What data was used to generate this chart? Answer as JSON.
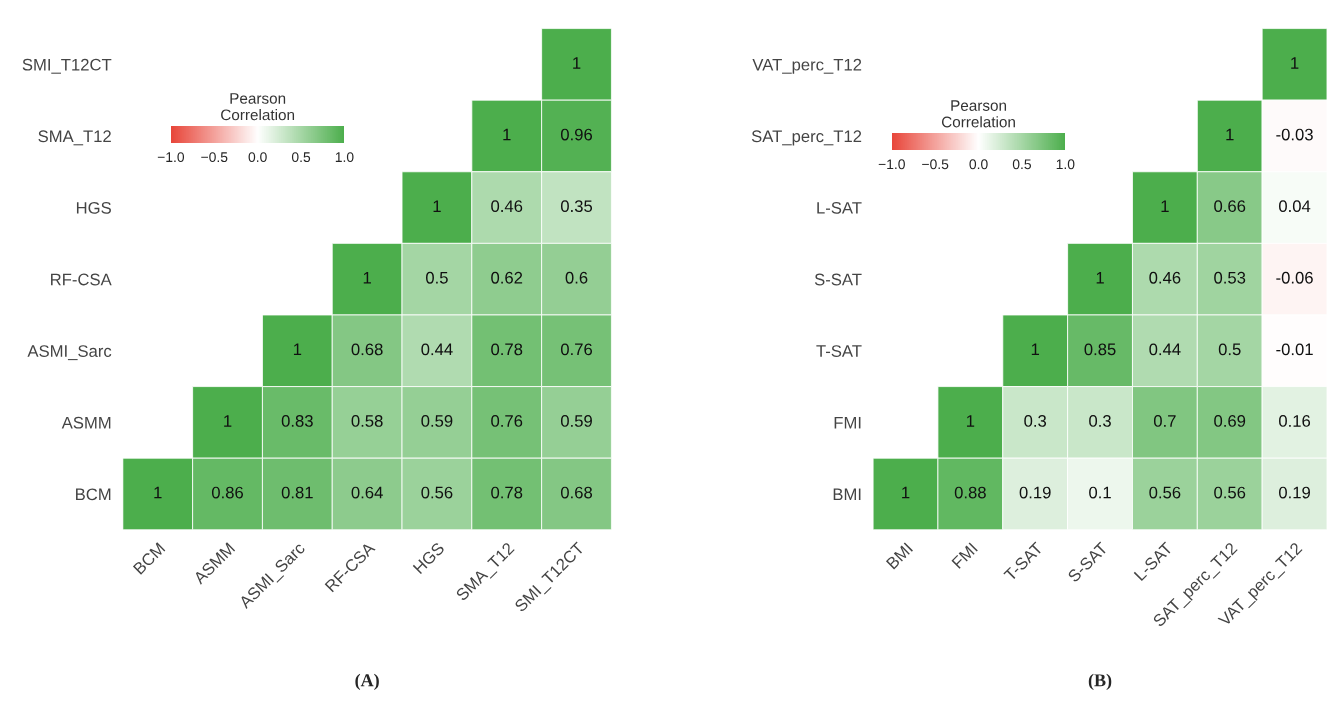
{
  "chart_data": [
    {
      "type": "heatmap",
      "categories": [
        "BCM",
        "ASMM",
        "ASMI_Sarc",
        "RF-CSA",
        "HGS",
        "SMA_T12",
        "SMI_T12CT"
      ],
      "y_categories": [
        "SMI_T12CT",
        "SMA_T12",
        "HGS",
        "RF-CSA",
        "ASMI_Sarc",
        "ASMM",
        "BCM"
      ],
      "cells": [
        [
          null,
          null,
          null,
          null,
          null,
          null,
          1
        ],
        [
          null,
          null,
          null,
          null,
          null,
          1,
          0.96
        ],
        [
          null,
          null,
          null,
          null,
          1,
          0.46,
          0.35
        ],
        [
          null,
          null,
          null,
          1,
          0.5,
          0.62,
          0.6
        ],
        [
          null,
          null,
          1,
          0.68,
          0.44,
          0.78,
          0.76
        ],
        [
          null,
          1,
          0.83,
          0.58,
          0.59,
          0.76,
          0.59
        ],
        [
          1,
          0.86,
          0.81,
          0.64,
          0.56,
          0.78,
          0.68
        ]
      ],
      "clabel": "Pearson\nCorrelation",
      "clim": [
        -1,
        1
      ],
      "cticks": [
        {
          "value": -1,
          "label": "−1.0"
        },
        {
          "value": -0.5,
          "label": "−0.5"
        },
        {
          "value": 0,
          "label": "0.0"
        },
        {
          "value": 0.5,
          "label": "0.5"
        },
        {
          "value": 1,
          "label": "1.0"
        }
      ],
      "colors": [
        "#e8463a",
        "#ffffff",
        "#4cae4c"
      ],
      "data_labels": true,
      "annotations": [
        "(A)"
      ]
    },
    {
      "type": "heatmap",
      "categories": [
        "BMI",
        "FMI",
        "T-SAT",
        "S-SAT",
        "L-SAT",
        "SAT_perc_T12",
        "VAT_perc_T12"
      ],
      "y_categories": [
        "VAT_perc_T12",
        "SAT_perc_T12",
        "L-SAT",
        "S-SAT",
        "T-SAT",
        "FMI",
        "BMI"
      ],
      "cells": [
        [
          null,
          null,
          null,
          null,
          null,
          null,
          1
        ],
        [
          null,
          null,
          null,
          null,
          null,
          1,
          -0.03
        ],
        [
          null,
          null,
          null,
          null,
          1,
          0.66,
          0.04
        ],
        [
          null,
          null,
          null,
          1,
          0.46,
          0.53,
          -0.06
        ],
        [
          null,
          null,
          1,
          0.85,
          0.44,
          0.5,
          -0.01
        ],
        [
          null,
          1,
          0.3,
          0.3,
          0.7,
          0.69,
          0.16
        ],
        [
          1,
          0.88,
          0.19,
          0.1,
          0.56,
          0.56,
          0.19
        ]
      ],
      "clabel": "Pearson\nCorrelation",
      "clim": [
        -1,
        1
      ],
      "cticks": [
        {
          "value": -1,
          "label": "−1.0"
        },
        {
          "value": -0.5,
          "label": "−0.5"
        },
        {
          "value": 0,
          "label": "0.0"
        },
        {
          "value": 0.5,
          "label": "0.5"
        },
        {
          "value": 1,
          "label": "1.0"
        }
      ],
      "colors": [
        "#e8463a",
        "#ffffff",
        "#4cae4c"
      ],
      "data_labels": true,
      "annotations": [
        "(B)"
      ]
    }
  ]
}
